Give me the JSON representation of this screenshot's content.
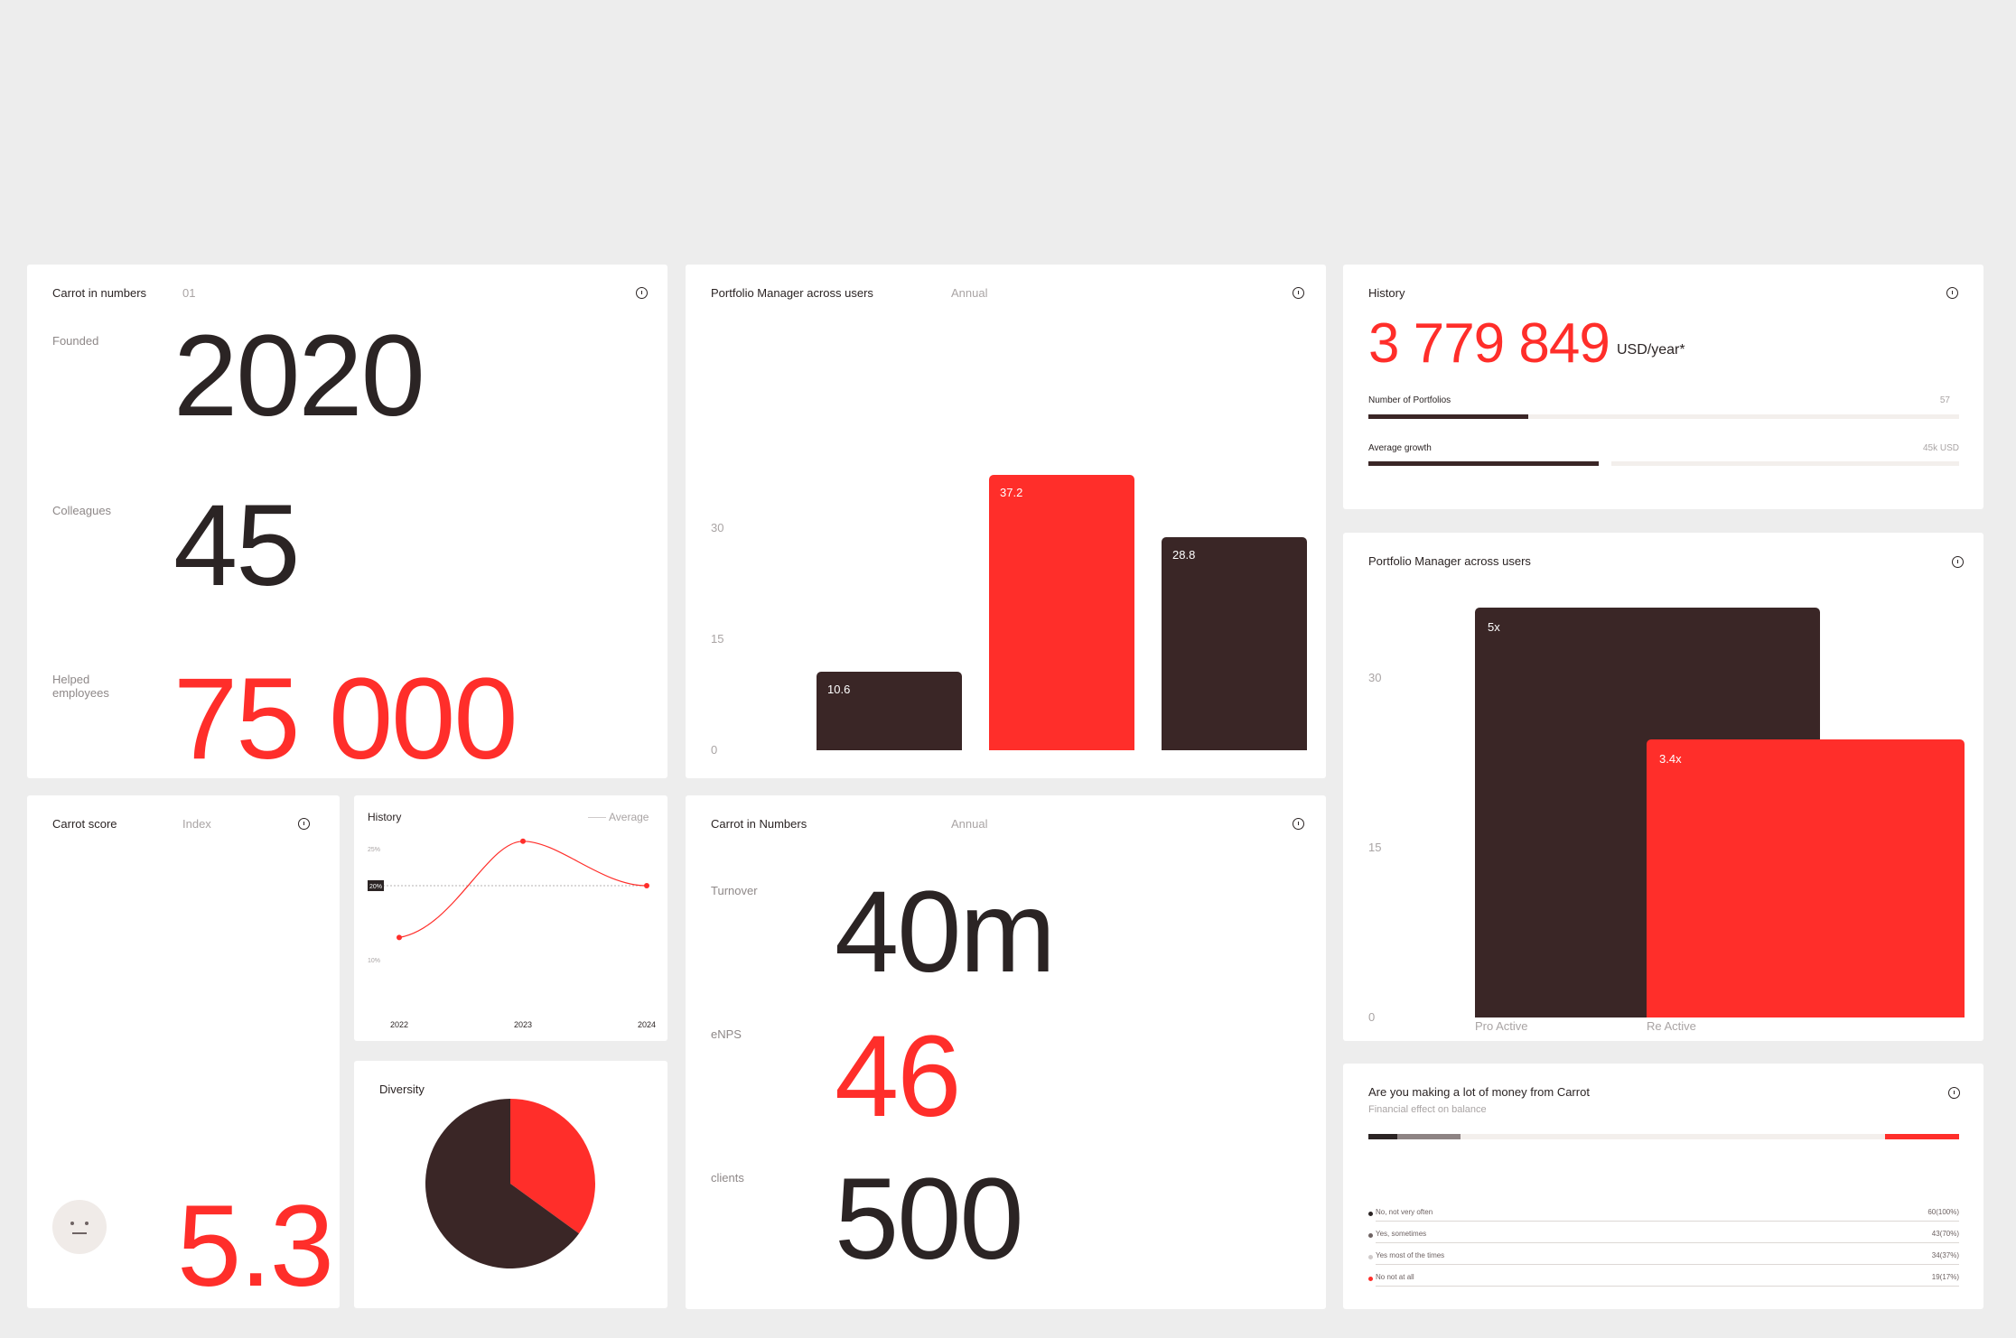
{
  "numbers_card": {
    "title": "Carrot in numbers",
    "index": "01",
    "founded_label": "Founded",
    "founded_value": "2020",
    "colleagues_label": "Colleagues",
    "colleagues_value": "45",
    "helped_label": "Helped employees",
    "helped_value": "75 000"
  },
  "pm_annual": {
    "title": "Portfolio Manager across users",
    "period": "Annual",
    "chart_data": {
      "type": "bar",
      "title": "Portfolio Manager across users",
      "values": [
        10.6,
        37.2,
        28.8
      ],
      "value_labels": [
        "10.6",
        "37.2",
        "28.8"
      ],
      "bar_colors": [
        "#3a2626",
        "#ff2e2a",
        "#3a2626"
      ],
      "yticks": [
        "30",
        "15",
        "0"
      ],
      "ytick_values": [
        30,
        15,
        0
      ]
    }
  },
  "history_top": {
    "title": "History",
    "amount": "3 779 849",
    "unit": "USD/year*",
    "portfolios_label": "Number of Portfolios",
    "portfolios_value": "57",
    "portfolios_progress": 0.27,
    "growth_label": "Average growth",
    "growth_value": "45k USD",
    "growth_progress": 0.39
  },
  "pm_active": {
    "title": "Portfolio Manager across users",
    "chart_data": {
      "type": "bar",
      "title": "Portfolio Manager across users",
      "categories": [
        "Pro Active",
        "Re Active"
      ],
      "value_labels": [
        "5x",
        "3.4x"
      ],
      "values": [
        36.2,
        24.6
      ],
      "bar_colors": [
        "#3a2626",
        "#ff2e2a"
      ],
      "yticks": [
        "30",
        "15",
        "0"
      ],
      "ytick_values": [
        30,
        15,
        0
      ]
    }
  },
  "score_card": {
    "title": "Carrot score",
    "sub": "Index",
    "value": "5.3",
    "face": "neutral-face-icon"
  },
  "history_line": {
    "title": "History",
    "legend": "Average",
    "chart_data": {
      "type": "line",
      "x": [
        "2022",
        "2023",
        "2024"
      ],
      "series": [
        {
          "values": [
            13,
            26,
            20
          ]
        }
      ],
      "average_label": "20%",
      "average_value": 20,
      "yticks": [
        "25%",
        "10%"
      ],
      "ytick_values": [
        25,
        10
      ]
    }
  },
  "diversity": {
    "title": "Diversity",
    "chart_data": {
      "type": "pie",
      "values": [
        35,
        65
      ],
      "colors": [
        "#ff2e2a",
        "#3a2626"
      ]
    }
  },
  "numbers2": {
    "title": "Carrot in Numbers",
    "period": "Annual",
    "turnover_label": "Turnover",
    "turnover_value": "40m",
    "enps_label": "eNPS",
    "enps_value": "46",
    "clients_label": "clients",
    "clients_value": "500"
  },
  "money_card": {
    "title": "Are you making a lot of money from Carrot",
    "sub": "Financial effect on balance",
    "rows": [
      {
        "label": "No, not very often",
        "value": "60(100%)",
        "color": "#2b2424"
      },
      {
        "label": "Yes, sometimes",
        "value": "43(70%)",
        "color": "#6e6363"
      },
      {
        "label": "Yes most of the times",
        "value": "34(37%)",
        "color": "#cfcaca"
      },
      {
        "label": "No not at all",
        "value": "19(17%)",
        "color": "#ff2e2a"
      }
    ]
  }
}
